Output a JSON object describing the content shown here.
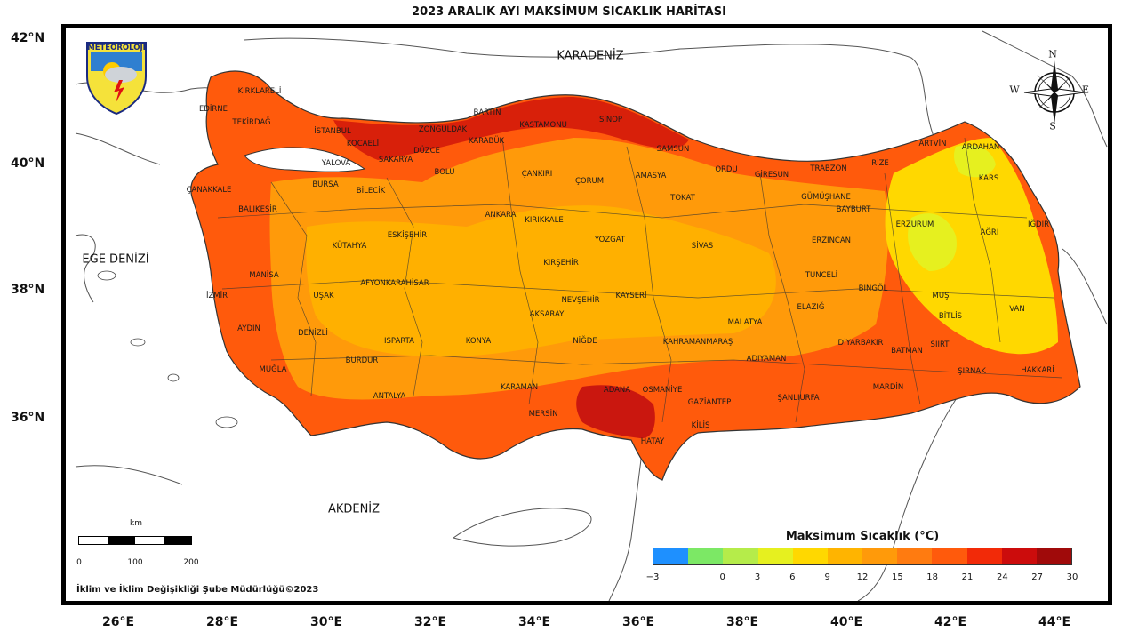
{
  "title": "2023 ARALIK AYI MAKSİMUM SICAKLIK HARİTASI",
  "lat_labels": [
    "42°N",
    "40°N",
    "38°N",
    "36°N"
  ],
  "lon_labels": [
    "26°E",
    "28°E",
    "30°E",
    "32°E",
    "34°E",
    "36°E",
    "38°E",
    "40°E",
    "42°E",
    "44°E"
  ],
  "seas": {
    "black_sea": "KARADENİZ",
    "aegean": "EGE DENİZİ",
    "mediterranean": "AKDENİZ"
  },
  "logo_text": "METEOROLOJİ",
  "compass": {
    "n": "N",
    "s": "S",
    "e": "E",
    "w": "W"
  },
  "provinces": [
    "KIRKLARELİ",
    "EDİRNE",
    "TEKİRDAĞ",
    "İSTANBUL",
    "KOCAELİ",
    "SAKARYA",
    "ZONGULDAK",
    "BARTIN",
    "KASTAMONU",
    "SİNOP",
    "DÜZCE",
    "KARABÜK",
    "BOLU",
    "YALOVA",
    "BURSA",
    "BİLECİK",
    "ÇANAKKALE",
    "BALIKESİR",
    "SAMSUN",
    "ORDU",
    "GİRESUN",
    "TRABZON",
    "RİZE",
    "ARTVİN",
    "ARDAHAN",
    "KARS",
    "IĞDIR",
    "AMASYA",
    "TOKAT",
    "ÇANKIRI",
    "ÇORUM",
    "ANKARA",
    "KIRIKKALE",
    "ESKİŞEHİR",
    "KÜTAHYA",
    "MANİSA",
    "İZMİR",
    "UŞAK",
    "AFYONKARAHİSAR",
    "YOZGAT",
    "KIRŞEHİR",
    "SİVAS",
    "GÜMÜŞHANE",
    "BAYBURT",
    "ERZURUM",
    "AĞRI",
    "ERZİNCAN",
    "TUNCELİ",
    "BİNGÖL",
    "MUŞ",
    "ELAZIĞ",
    "MALATYA",
    "KAYSERİ",
    "NEVŞEHİR",
    "AKSARAY",
    "AYDIN",
    "DENİZLİ",
    "ISPARTA",
    "KONYA",
    "NİĞDE",
    "KAHRAMANMARAŞ",
    "ADIYAMAN",
    "DİYARBAKIR",
    "BATMAN",
    "SİİRT",
    "BİTLİS",
    "VAN",
    "ŞIRNAK",
    "HAKKARİ",
    "MUĞLA",
    "BURDUR",
    "ANTALYA",
    "KARAMAN",
    "MERSİN",
    "ADANA",
    "OSMANİYE",
    "HATAY",
    "GAZİANTEP",
    "KİLİS",
    "ŞANLIURFA",
    "MARDİN"
  ],
  "legend": {
    "title": "Maksimum Sıcaklık (°C)",
    "ticks": [
      "−3",
      "0",
      "3",
      "6",
      "9",
      "12",
      "15",
      "18",
      "21",
      "24",
      "27",
      "30"
    ],
    "colors": [
      "#1e90ff",
      "#7ce865",
      "#b5ec4a",
      "#e6f01f",
      "#ffd800",
      "#ffb400",
      "#ff9a0a",
      "#ff7b10",
      "#ff5a0c",
      "#f22a08",
      "#cc0c0c",
      "#a00a0a"
    ]
  },
  "scale": {
    "unit": "km",
    "labels": [
      "0",
      "100",
      "200"
    ]
  },
  "credit": "İklim ve İklim Değişikliği Şube Müdürlüğü©2023"
}
